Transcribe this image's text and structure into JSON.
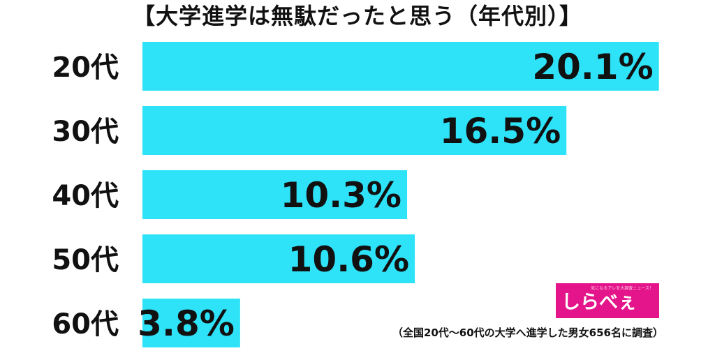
{
  "title": "【大学進学は無駄だったと思う（年代別）】",
  "footnote": "（全国20代〜60代の大学へ進学した男女656名に調査）",
  "logo": {
    "text": "しらべぇ",
    "tagline": "気になるアレを大調査ニュース！"
  },
  "chart_data": {
    "type": "bar",
    "orientation": "horizontal",
    "categories": [
      "20代",
      "30代",
      "40代",
      "50代",
      "60代"
    ],
    "values": [
      20.1,
      16.5,
      10.3,
      10.6,
      3.8
    ],
    "value_labels": [
      "20.1%",
      "16.5%",
      "10.3%",
      "10.6%",
      "3.8%"
    ],
    "title": "【大学進学は無駄だったと思う（年代別）】",
    "unit": "%",
    "bar_color": "#2ee2f8",
    "grid": false,
    "legend": "none"
  }
}
